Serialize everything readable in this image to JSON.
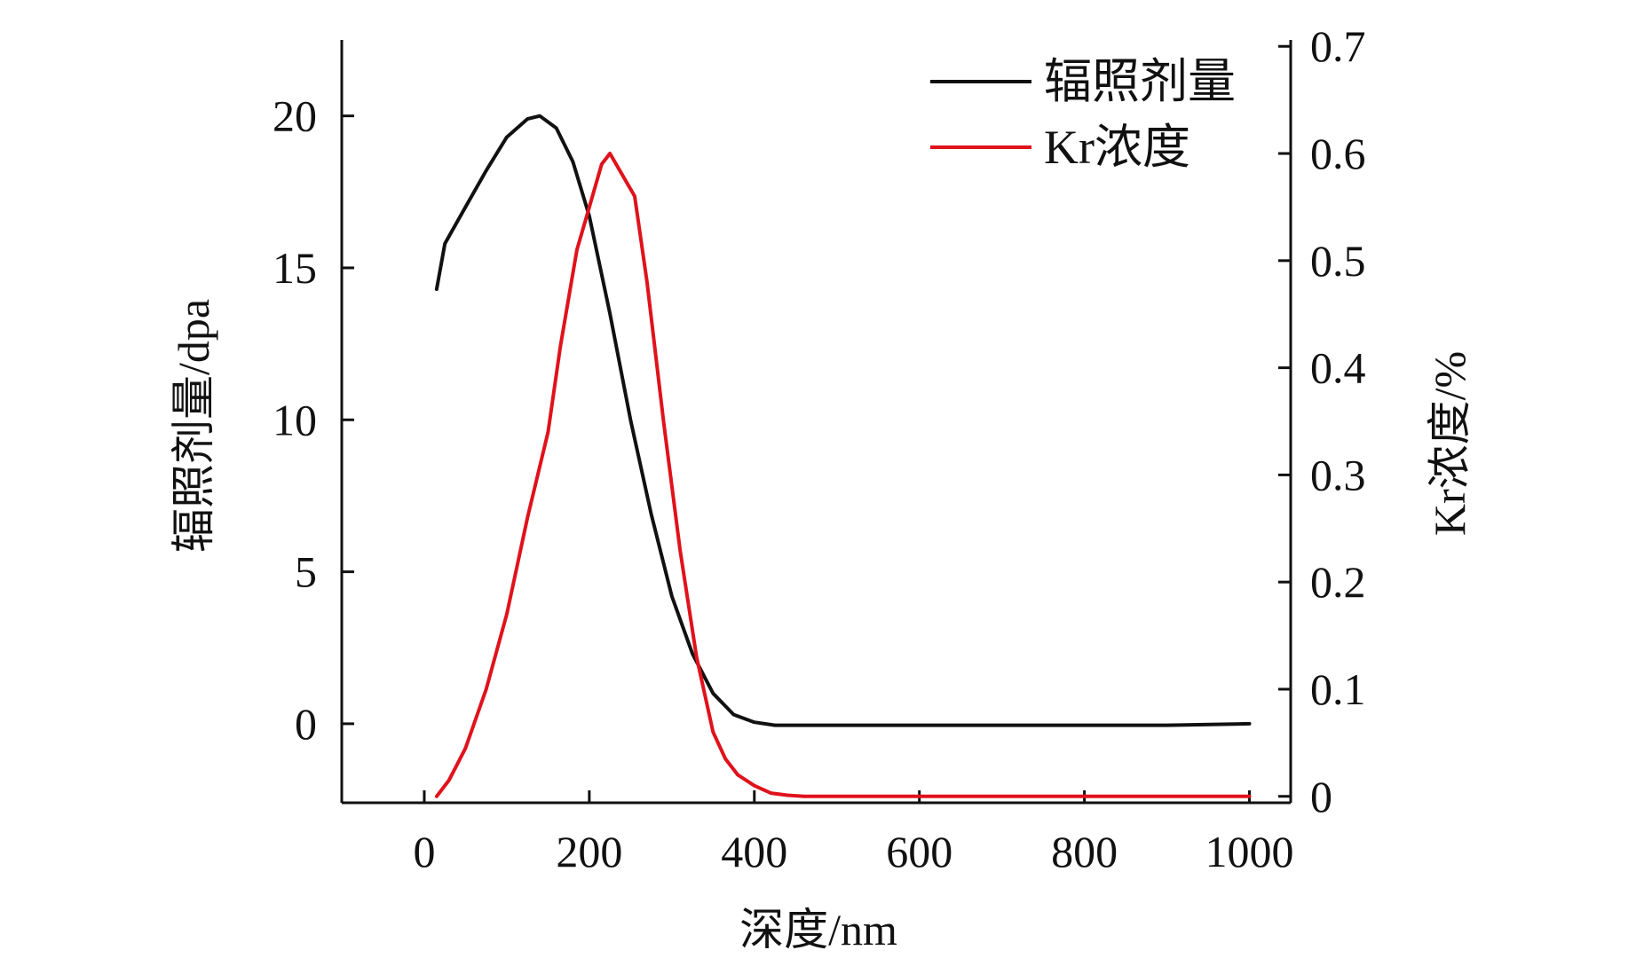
{
  "chart_data": {
    "type": "line",
    "xlabel": "深度/nm",
    "ylabel_left": "辐照剂量/dpa",
    "ylabel_right": "Kr浓度/%",
    "xlim": [
      -100,
      1050
    ],
    "ylim_left": [
      -2.6,
      22.5
    ],
    "ylim_right": [
      -0.006,
      0.706
    ],
    "x_ticks": [
      0,
      200,
      400,
      600,
      800,
      1000
    ],
    "x_tick_labels": [
      "0",
      "200",
      "400",
      "600",
      "800",
      "1000"
    ],
    "y_left_ticks": [
      0,
      5,
      10,
      15,
      20
    ],
    "y_left_tick_labels": [
      "0",
      "5",
      "10",
      "15",
      "20"
    ],
    "y_right_ticks": [
      0,
      0.1,
      0.2,
      0.3,
      0.4,
      0.5,
      0.6,
      0.7
    ],
    "y_right_tick_labels": [
      "0",
      "0.1",
      "0.2",
      "0.3",
      "0.4",
      "0.5",
      "0.6",
      "0.7"
    ],
    "legend_position": "top-right",
    "series": [
      {
        "name": "辐照剂量",
        "axis": "left",
        "color": "#111111",
        "x": [
          15,
          25,
          50,
          75,
          100,
          125,
          140,
          160,
          180,
          200,
          225,
          250,
          275,
          300,
          325,
          350,
          375,
          400,
          425,
          450,
          500,
          600,
          700,
          800,
          900,
          1000
        ],
        "y": [
          14.3,
          15.8,
          17.0,
          18.2,
          19.3,
          19.9,
          20.0,
          19.6,
          18.5,
          16.7,
          13.5,
          10.0,
          6.9,
          4.2,
          2.3,
          1.0,
          0.3,
          0.05,
          -0.05,
          -0.05,
          -0.05,
          -0.05,
          -0.05,
          -0.05,
          -0.05,
          0.0
        ]
      },
      {
        "name": "Kr浓度",
        "axis": "right",
        "color": "#e0121b",
        "x": [
          15,
          30,
          50,
          75,
          100,
          125,
          150,
          165,
          185,
          200,
          215,
          225,
          240,
          255,
          270,
          290,
          310,
          330,
          350,
          365,
          380,
          400,
          420,
          440,
          460,
          500,
          600,
          700,
          800,
          900,
          1000
        ],
        "y": [
          0.0,
          0.015,
          0.045,
          0.1,
          0.17,
          0.26,
          0.34,
          0.42,
          0.51,
          0.55,
          0.59,
          0.6,
          0.58,
          0.56,
          0.48,
          0.35,
          0.23,
          0.13,
          0.06,
          0.035,
          0.02,
          0.01,
          0.003,
          0.001,
          0.0,
          0.0,
          0.0,
          0.0,
          0.0,
          0.0,
          0.0
        ]
      }
    ]
  }
}
